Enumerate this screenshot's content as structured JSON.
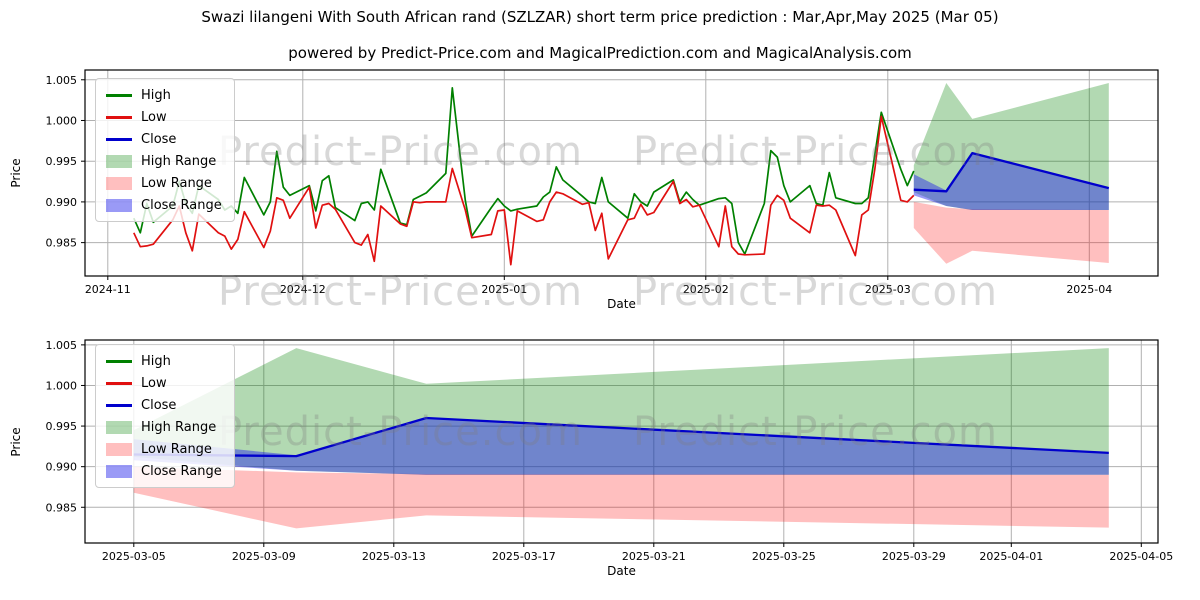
{
  "title": "Swazi lilangeni With South African rand (SZLZAR) short term price prediction : Mar,Apr,May 2025 (Mar 05)",
  "subtitle": "powered by Predict-Price.com and MagicalPrediction.com and MagicalAnalysis.com",
  "watermark": "Predict-Price.com",
  "legend": [
    "High",
    "Low",
    "Close",
    "High Range",
    "Low Range",
    "Close Range"
  ],
  "colors": {
    "high": "#008000",
    "low": "#e01010",
    "close": "#0000cc",
    "high_range": "rgba(0,128,0,0.30)",
    "low_range": "rgba(255,0,0,0.25)",
    "close_range": "rgba(30,30,235,0.45)",
    "grid": "#b0b0b0",
    "axis": "#000000",
    "watermark_gray": "#d6d6d6"
  },
  "chart_data": [
    {
      "type": "line",
      "name": "history-with-forecast",
      "ylabel": "Price",
      "xlabel": "Date",
      "grid": true,
      "legend_position": "upper-left",
      "yticks": [
        0.985,
        0.99,
        0.995,
        1.0,
        1.005
      ],
      "ytick_labels": [
        "0.985",
        "0.990",
        "0.995",
        "1.000",
        "1.005"
      ],
      "xticks": [
        "2024-11",
        "2024-12",
        "2025-01",
        "2025-02",
        "2025-03",
        "2025-04"
      ],
      "xtick_dates": [
        "2024-11-01",
        "2024-12-01",
        "2025-01-01",
        "2025-02-01",
        "2025-03-01",
        "2025-04-01"
      ],
      "ylim": [
        0.9809,
        1.0062
      ],
      "dates": [
        "2024-11-05",
        "2024-11-06",
        "2024-11-07",
        "2024-11-08",
        "2024-11-11",
        "2024-11-12",
        "2024-11-13",
        "2024-11-14",
        "2024-11-15",
        "2024-11-18",
        "2024-11-19",
        "2024-11-20",
        "2024-11-21",
        "2024-11-22",
        "2024-11-25",
        "2024-11-26",
        "2024-11-27",
        "2024-11-28",
        "2024-11-29",
        "2024-12-02",
        "2024-12-03",
        "2024-12-04",
        "2024-12-05",
        "2024-12-06",
        "2024-12-09",
        "2024-12-10",
        "2024-12-11",
        "2024-12-12",
        "2024-12-13",
        "2024-12-16",
        "2024-12-17",
        "2024-12-18",
        "2024-12-19",
        "2024-12-20",
        "2024-12-23",
        "2024-12-24",
        "2024-12-26",
        "2024-12-27",
        "2024-12-30",
        "2024-12-31",
        "2025-01-01",
        "2025-01-02",
        "2025-01-03",
        "2025-01-06",
        "2025-01-07",
        "2025-01-08",
        "2025-01-09",
        "2025-01-10",
        "2025-01-13",
        "2025-01-14",
        "2025-01-15",
        "2025-01-16",
        "2025-01-17",
        "2025-01-20",
        "2025-01-21",
        "2025-01-22",
        "2025-01-23",
        "2025-01-24",
        "2025-01-27",
        "2025-01-28",
        "2025-01-29",
        "2025-01-30",
        "2025-01-31",
        "2025-02-03",
        "2025-02-04",
        "2025-02-05",
        "2025-02-06",
        "2025-02-07",
        "2025-02-10",
        "2025-02-11",
        "2025-02-12",
        "2025-02-13",
        "2025-02-14",
        "2025-02-17",
        "2025-02-18",
        "2025-02-19",
        "2025-02-20",
        "2025-02-21",
        "2025-02-24",
        "2025-02-25",
        "2025-02-26",
        "2025-02-27",
        "2025-02-28",
        "2025-03-03",
        "2025-03-04",
        "2025-03-05"
      ],
      "series": [
        {
          "name": "High",
          "values": [
            0.988,
            0.9862,
            0.9898,
            0.9875,
            0.9895,
            0.9925,
            0.9898,
            0.9886,
            0.992,
            0.9903,
            0.989,
            0.9895,
            0.9886,
            0.993,
            0.9884,
            0.99,
            0.9962,
            0.9918,
            0.9908,
            0.992,
            0.9889,
            0.9926,
            0.9932,
            0.9893,
            0.9877,
            0.9898,
            0.99,
            0.989,
            0.994,
            0.9874,
            0.9872,
            0.9903,
            0.9907,
            0.9911,
            0.9935,
            1.004,
            0.9902,
            0.9858,
            0.9893,
            0.9904,
            0.9895,
            0.9889,
            0.9891,
            0.9895,
            0.9906,
            0.9912,
            0.9943,
            0.9927,
            0.9907,
            0.99,
            0.9898,
            0.993,
            0.99,
            0.988,
            0.991,
            0.99,
            0.9895,
            0.9912,
            0.9927,
            0.99,
            0.9912,
            0.9903,
            0.9896,
            0.9904,
            0.9905,
            0.9898,
            0.985,
            0.9836,
            0.9898,
            0.9963,
            0.9955,
            0.992,
            0.99,
            0.992,
            0.9898,
            0.9896,
            0.9936,
            0.9905,
            0.9898,
            0.9898,
            0.9905,
            0.9958,
            1.001,
            0.994,
            0.992,
            0.9938
          ]
        },
        {
          "name": "Low",
          "values": [
            0.9862,
            0.9845,
            0.9846,
            0.9848,
            0.9878,
            0.9895,
            0.9862,
            0.984,
            0.9885,
            0.9862,
            0.9858,
            0.9842,
            0.9854,
            0.9888,
            0.9844,
            0.9864,
            0.9905,
            0.9902,
            0.988,
            0.9918,
            0.9868,
            0.9896,
            0.9898,
            0.9891,
            0.985,
            0.9847,
            0.986,
            0.9827,
            0.9895,
            0.9873,
            0.987,
            0.99,
            0.9899,
            0.99,
            0.99,
            0.9941,
            0.989,
            0.9856,
            0.986,
            0.9889,
            0.989,
            0.9823,
            0.9889,
            0.9876,
            0.9878,
            0.99,
            0.9912,
            0.991,
            0.9897,
            0.9899,
            0.9865,
            0.9886,
            0.983,
            0.9878,
            0.988,
            0.9897,
            0.9884,
            0.9887,
            0.9925,
            0.9898,
            0.9903,
            0.9894,
            0.9896,
            0.9845,
            0.9895,
            0.9845,
            0.9836,
            0.9835,
            0.9836,
            0.9896,
            0.9908,
            0.9902,
            0.988,
            0.9862,
            0.9896,
            0.9895,
            0.9896,
            0.989,
            0.9834,
            0.9884,
            0.989,
            0.994,
            1.0005,
            0.9902,
            0.99,
            0.9908
          ]
        }
      ],
      "forecast": {
        "dates": [
          "2025-03-05",
          "2025-03-10",
          "2025-03-14",
          "2025-04-04"
        ],
        "close": [
          0.9915,
          0.9913,
          0.996,
          0.9917
        ],
        "close_range": {
          "upper": [
            0.9934,
            0.9914,
            0.996,
            0.9917
          ],
          "lower": [
            0.9908,
            0.9895,
            0.989,
            0.989
          ]
        },
        "high_range": {
          "upper": [
            0.9945,
            1.0046,
            1.0002,
            1.0046
          ],
          "lower": [
            0.9912,
            0.9895,
            0.989,
            0.989
          ]
        },
        "low_range": {
          "upper": [
            0.99,
            0.9893,
            0.9891,
            0.989
          ],
          "lower": [
            0.9868,
            0.9824,
            0.984,
            0.9825
          ]
        }
      }
    },
    {
      "type": "area",
      "name": "forecast-detail",
      "ylabel": "Price",
      "xlabel": "Date",
      "grid": true,
      "legend_position": "upper-left",
      "yticks": [
        0.985,
        0.99,
        0.995,
        1.0,
        1.005
      ],
      "ytick_labels": [
        "0.985",
        "0.990",
        "0.995",
        "1.000",
        "1.005"
      ],
      "xticks": [
        "2025-03-05",
        "2025-03-09",
        "2025-03-13",
        "2025-03-17",
        "2025-03-21",
        "2025-03-25",
        "2025-03-29",
        "2025-04-01",
        "2025-04-05"
      ],
      "xtick_dates": [
        "2025-03-05",
        "2025-03-09",
        "2025-03-13",
        "2025-03-17",
        "2025-03-21",
        "2025-03-25",
        "2025-03-29",
        "2025-04-01",
        "2025-04-05"
      ],
      "ylim": [
        0.9806,
        1.0056
      ],
      "forecast": {
        "dates": [
          "2025-03-05",
          "2025-03-10",
          "2025-03-14",
          "2025-04-04"
        ],
        "close": [
          0.9915,
          0.9913,
          0.996,
          0.9917
        ],
        "close_range": {
          "upper": [
            0.9934,
            0.9914,
            0.996,
            0.9917
          ],
          "lower": [
            0.9908,
            0.9895,
            0.989,
            0.989
          ]
        },
        "high_range": {
          "upper": [
            0.9945,
            1.0046,
            1.0002,
            1.0046
          ],
          "lower": [
            0.9912,
            0.9895,
            0.989,
            0.989
          ]
        },
        "low_range": {
          "upper": [
            0.99,
            0.9893,
            0.9891,
            0.989
          ],
          "lower": [
            0.9868,
            0.9824,
            0.984,
            0.9825
          ]
        }
      }
    }
  ]
}
